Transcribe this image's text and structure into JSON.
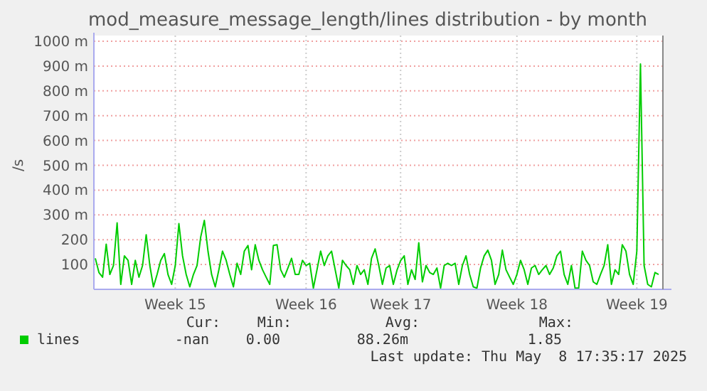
{
  "chart_data": {
    "type": "line",
    "title": "mod_measure_message_length/lines distribution - by month",
    "ylabel": "/s",
    "categories": [
      null,
      null,
      null,
      null,
      null,
      null,
      null,
      null,
      null,
      null,
      null,
      null,
      null,
      null,
      null,
      null,
      null,
      null,
      null,
      null,
      null,
      null,
      "Week 15",
      null,
      null,
      null,
      null,
      null,
      null,
      null,
      null,
      null,
      null,
      null,
      null,
      null,
      null,
      null,
      null,
      null,
      null,
      null,
      null,
      null,
      null,
      null,
      null,
      null,
      null,
      null,
      null,
      null,
      null,
      null,
      null,
      null,
      null,
      null,
      "Week 16",
      null,
      null,
      null,
      null,
      null,
      null,
      null,
      null,
      null,
      null,
      null,
      null,
      null,
      null,
      null,
      null,
      null,
      null,
      null,
      null,
      null,
      null,
      null,
      null,
      null,
      "Week 17",
      null,
      null,
      null,
      null,
      null,
      null,
      null,
      null,
      null,
      null,
      null,
      null,
      null,
      null,
      null,
      null,
      null,
      null,
      null,
      null,
      null,
      null,
      null,
      null,
      null,
      null,
      null,
      null,
      null,
      null,
      null,
      "Week 18",
      null,
      null,
      null,
      null,
      null,
      null,
      null,
      null,
      null,
      null,
      null,
      null,
      null,
      null,
      null,
      null,
      null,
      null,
      null,
      null,
      null,
      null,
      null,
      null,
      null,
      null,
      null,
      null,
      null,
      null,
      null,
      null,
      "Week 19",
      null,
      null,
      null,
      null,
      null,
      null
    ],
    "ylim": [
      0,
      1000
    ],
    "yticks": [
      {
        "value": 100,
        "label": "100"
      },
      {
        "value": 200,
        "label": "200"
      },
      {
        "value": 300,
        "label": "300 m"
      },
      {
        "value": 400,
        "label": "400 m"
      },
      {
        "value": 500,
        "label": "500 m"
      },
      {
        "value": 600,
        "label": "600 m"
      },
      {
        "value": 700,
        "label": "700 m"
      },
      {
        "value": 800,
        "label": "800 m"
      },
      {
        "value": 900,
        "label": "900 m"
      },
      {
        "value": 1000,
        "label": "1000 m"
      }
    ],
    "grid": true,
    "legend": "bottom left",
    "marker": "none",
    "line_style": "solid",
    "series": [
      {
        "name": "lines",
        "color": "#00cc00",
        "values": [
          125,
          68,
          49,
          182,
          60,
          96,
          268,
          20,
          135,
          117,
          20,
          117,
          49,
          96,
          220,
          96,
          10,
          60,
          117,
          144,
          60,
          20,
          96,
          265,
          135,
          60,
          10,
          60,
          96,
          211,
          278,
          154,
          60,
          10,
          79,
          154,
          117,
          60,
          10,
          105,
          60,
          154,
          177,
          79,
          180,
          117,
          79,
          49,
          20,
          177,
          180,
          79,
          49,
          86,
          125,
          60,
          60,
          117,
          96,
          105,
          5,
          79,
          154,
          96,
          135,
          154,
          79,
          5,
          117,
          96,
          79,
          20,
          96,
          60,
          79,
          20,
          125,
          163,
          96,
          20,
          86,
          96,
          20,
          77,
          116,
          135,
          20,
          79,
          40,
          188,
          30,
          96,
          68,
          60,
          86,
          5,
          96,
          105,
          96,
          105,
          20,
          96,
          135,
          60,
          10,
          5,
          86,
          135,
          158,
          117,
          20,
          60,
          158,
          79,
          49,
          20,
          60,
          117,
          79,
          20,
          86,
          96,
          60,
          79,
          96,
          60,
          86,
          135,
          154,
          60,
          20,
          96,
          5,
          5,
          154,
          117,
          96,
          30,
          20,
          60,
          96,
          180,
          20,
          79,
          60,
          180,
          154,
          60,
          20,
          154,
          908,
          96,
          20,
          10,
          68,
          60
        ]
      }
    ],
    "annotations": [
      "Cur:",
      "Min:",
      "Avg:",
      "Max:",
      "-nan",
      "0.00",
      "88.26m",
      "1.85",
      "Last update: Thu May  8 17:35:17 2025"
    ]
  }
}
